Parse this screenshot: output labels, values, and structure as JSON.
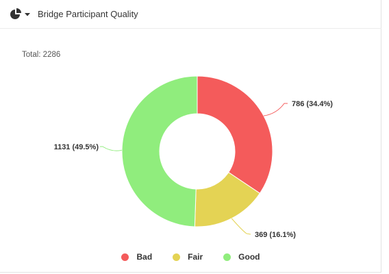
{
  "header": {
    "title": "Bridge Participant Quality",
    "icon": "pie-chart-icon",
    "dropdown_icon": "caret-down-icon"
  },
  "total_label": "Total: 2286",
  "chart_data": {
    "type": "pie",
    "donut": true,
    "total": 2286,
    "slices": [
      {
        "name": "Bad",
        "value": 786,
        "label": "786 (34.4%)",
        "color": "#f45b5b"
      },
      {
        "name": "Fair",
        "value": 369,
        "label": "369 (16.1%)",
        "color": "#e4d354"
      },
      {
        "name": "Good",
        "value": 1131,
        "label": "1131 (49.5%)",
        "color": "#90ed7d"
      }
    ],
    "legend_position": "bottom"
  },
  "legend": [
    {
      "label": "Bad",
      "color": "#f45b5b"
    },
    {
      "label": "Fair",
      "color": "#e4d354"
    },
    {
      "label": "Good",
      "color": "#90ed7d"
    }
  ]
}
